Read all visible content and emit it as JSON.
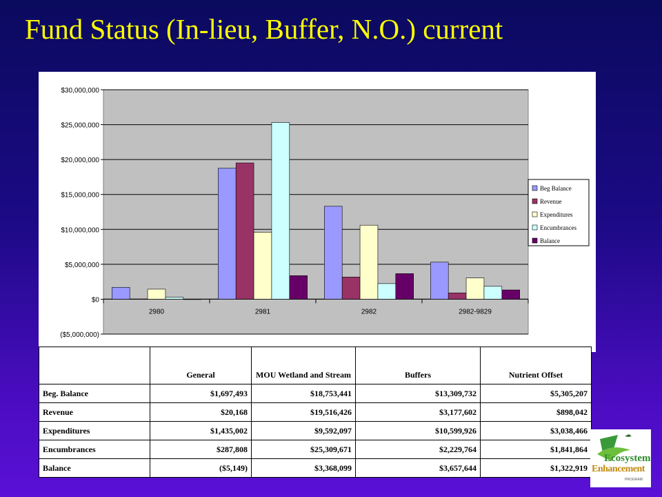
{
  "title": "Fund Status (In-lieu, Buffer, N.O.) current",
  "chart_data": {
    "type": "bar",
    "categories": [
      "2980",
      "2981",
      "2982",
      "2982-9829"
    ],
    "series": [
      {
        "name": "Beg Balance",
        "values": [
          1697493,
          18753441,
          13309732,
          5305207
        ],
        "color": "#9999ff"
      },
      {
        "name": "Revenue",
        "values": [
          20168,
          19516426,
          3177602,
          898042
        ],
        "color": "#993366"
      },
      {
        "name": "Expenditures",
        "values": [
          1435002,
          9592097,
          10599926,
          3038466
        ],
        "color": "#ffffcc"
      },
      {
        "name": "Encumbrances",
        "values": [
          287808,
          25309671,
          2229764,
          1841864
        ],
        "color": "#ccffff"
      },
      {
        "name": "Balance",
        "values": [
          -5149,
          3368099,
          3657644,
          1322919
        ],
        "color": "#660066"
      }
    ],
    "y_ticks": [
      "($5,000,000)",
      "$0",
      "$5,000,000",
      "$10,000,000",
      "$15,000,000",
      "$20,000,000",
      "$25,000,000",
      "$30,000,000"
    ],
    "ylim": [
      -5000000,
      30000000
    ],
    "plot_background": "#c0c0c0",
    "grid": true,
    "legend_position": "right"
  },
  "table": {
    "headers": [
      "",
      "General",
      "MOU Wetland and Stream",
      "Buffers",
      "Nutrient Offset"
    ],
    "rows": [
      {
        "label": "Beg. Balance",
        "cells": [
          "$1,697,493",
          "$18,753,441",
          "$13,309,732",
          "$5,305,207"
        ]
      },
      {
        "label": "Revenue",
        "cells": [
          "$20,168",
          "$19,516,426",
          "$3,177,602",
          "$898,042"
        ]
      },
      {
        "label": "Expenditures",
        "cells": [
          "$1,435,002",
          "$9,592,097",
          "$10,599,926",
          "$3,038,466"
        ]
      },
      {
        "label": "Encumbrances",
        "cells": [
          "$287,808",
          "$25,309,671",
          "$2,229,764",
          "$1,841,864"
        ]
      },
      {
        "label": "Balance",
        "cells": [
          "($5,149)",
          "$3,368,099",
          "$3,657,644",
          "$1,322,919"
        ]
      }
    ]
  },
  "logo": {
    "line1": "Ecosystem",
    "line2": "Enhancement",
    "line3": "PROGRAM",
    "icon": "leaf-wave-logo-icon"
  }
}
